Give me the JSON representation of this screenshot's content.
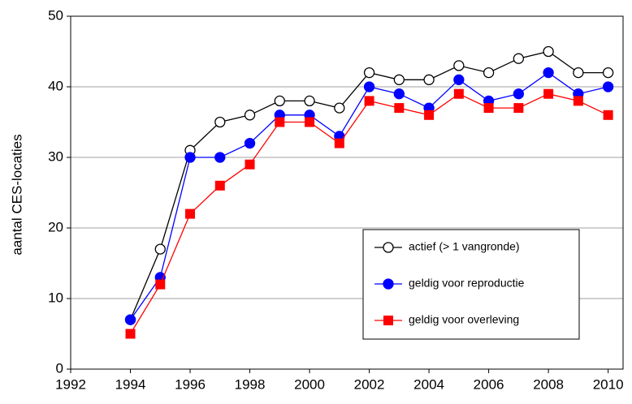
{
  "chart_data": {
    "type": "line",
    "ylabel": "aantal CES-locaties",
    "x": [
      1994,
      1995,
      1996,
      1997,
      1998,
      1999,
      2000,
      2001,
      2002,
      2003,
      2004,
      2005,
      2006,
      2007,
      2008,
      2009,
      2010
    ],
    "series": [
      {
        "name": "actief (> 1 vangronde)",
        "color": "#000000",
        "marker": "open-circle",
        "values": [
          7,
          17,
          31,
          35,
          36,
          38,
          38,
          37,
          42,
          41,
          41,
          43,
          42,
          44,
          45,
          42,
          42
        ]
      },
      {
        "name": "geldig voor reproductie",
        "color": "#0000ff",
        "marker": "circle",
        "values": [
          7,
          13,
          30,
          30,
          32,
          36,
          36,
          33,
          40,
          39,
          37,
          41,
          38,
          39,
          42,
          39,
          40
        ]
      },
      {
        "name": "geldig voor overleving",
        "color": "#ff0000",
        "marker": "square",
        "values": [
          5,
          12,
          22,
          26,
          29,
          35,
          35,
          32,
          38,
          37,
          36,
          39,
          37,
          37,
          39,
          38,
          36
        ]
      }
    ],
    "xlim": [
      1992,
      2010.5
    ],
    "xticks": [
      1992,
      1994,
      1996,
      1998,
      2000,
      2002,
      2004,
      2006,
      2008,
      2010
    ],
    "ylim": [
      0,
      50
    ],
    "yticks": [
      0,
      10,
      20,
      30,
      40,
      50
    ],
    "grid": true,
    "legend": "lower-right"
  }
}
